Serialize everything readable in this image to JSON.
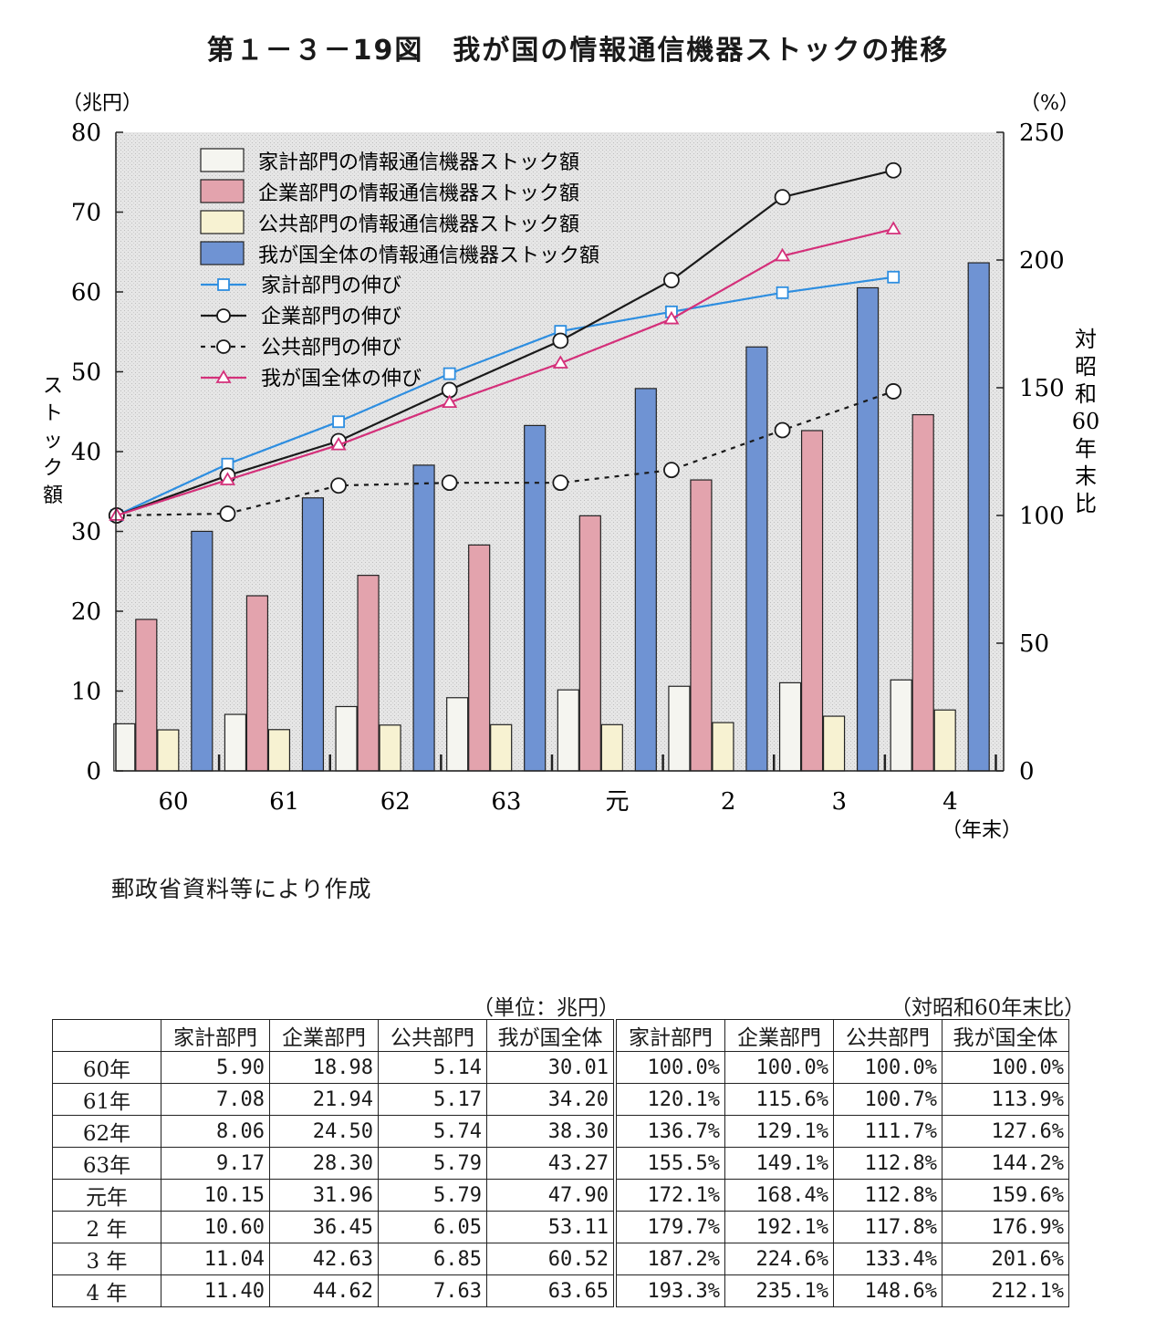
{
  "title": "第１－３－19図　我が国の情報通信機器ストックの推移",
  "source": "郵政省資料等により作成",
  "chart_data": {
    "type": "bar",
    "categories": [
      "60",
      "61",
      "62",
      "63",
      "元",
      "2",
      "3",
      "4"
    ],
    "x_unit": "（年末）",
    "y_left": {
      "unit": "（兆円）",
      "label": "ストック額",
      "min": 0,
      "max": 80,
      "ticks": [
        0,
        10,
        20,
        30,
        40,
        50,
        60,
        70,
        80
      ]
    },
    "y_right": {
      "unit": "（%）",
      "label": "対昭和60年末比",
      "min": 0,
      "max": 250,
      "ticks": [
        0,
        50,
        100,
        150,
        200,
        250
      ]
    },
    "bar_series": [
      {
        "name": "家計部門の情報通信機器ストック額",
        "color": "#f5f5f0",
        "values": [
          5.9,
          7.08,
          8.06,
          9.17,
          10.15,
          10.6,
          11.04,
          11.4
        ]
      },
      {
        "name": "企業部門の情報通信機器ストック額",
        "color": "#e3a3ad",
        "values": [
          18.98,
          21.94,
          24.5,
          28.3,
          31.96,
          36.45,
          42.63,
          44.62
        ]
      },
      {
        "name": "公共部門の情報通信機器ストック額",
        "color": "#f7f2d2",
        "values": [
          5.14,
          5.17,
          5.74,
          5.79,
          5.79,
          6.05,
          6.85,
          7.63
        ]
      },
      {
        "name": "我が国全体の情報通信機器ストック額",
        "color": "#6f93d3",
        "values": [
          30.01,
          34.2,
          38.3,
          43.27,
          47.9,
          53.11,
          60.52,
          63.65
        ]
      }
    ],
    "line_series": [
      {
        "name": "家計部門の伸び",
        "color": "#2e8ee0",
        "marker": "square",
        "dash": false,
        "values": [
          100.0,
          120.1,
          136.7,
          155.5,
          172.1,
          179.7,
          187.2,
          193.3
        ]
      },
      {
        "name": "企業部門の伸び",
        "color": "#1a1a1a",
        "marker": "circle",
        "dash": false,
        "values": [
          100.0,
          115.6,
          129.1,
          149.1,
          168.4,
          192.1,
          224.6,
          235.1
        ]
      },
      {
        "name": "公共部門の伸び",
        "color": "#1a1a1a",
        "marker": "circle",
        "dash": true,
        "values": [
          100.0,
          100.7,
          111.7,
          112.8,
          112.8,
          117.8,
          133.4,
          148.6
        ]
      },
      {
        "name": "我が国全体の伸び",
        "color": "#d4307a",
        "marker": "triangle",
        "dash": false,
        "values": [
          100.0,
          113.9,
          127.6,
          144.2,
          159.6,
          176.9,
          201.6,
          212.1
        ]
      }
    ]
  },
  "table": {
    "unit_left": "（単位：兆円）",
    "unit_right": "（対昭和60年末比）",
    "headers": [
      "家計部門",
      "企業部門",
      "公共部門",
      "我が国全体",
      "家計部門",
      "企業部門",
      "公共部門",
      "我が国全体"
    ],
    "rows": [
      {
        "label": "60年",
        "cells": [
          "5.90",
          "18.98",
          "5.14",
          "30.01",
          "100.0%",
          "100.0%",
          "100.0%",
          "100.0%"
        ]
      },
      {
        "label": "61年",
        "cells": [
          "7.08",
          "21.94",
          "5.17",
          "34.20",
          "120.1%",
          "115.6%",
          "100.7%",
          "113.9%"
        ]
      },
      {
        "label": "62年",
        "cells": [
          "8.06",
          "24.50",
          "5.74",
          "38.30",
          "136.7%",
          "129.1%",
          "111.7%",
          "127.6%"
        ]
      },
      {
        "label": "63年",
        "cells": [
          "9.17",
          "28.30",
          "5.79",
          "43.27",
          "155.5%",
          "149.1%",
          "112.8%",
          "144.2%"
        ]
      },
      {
        "label": "元年",
        "cells": [
          "10.15",
          "31.96",
          "5.79",
          "47.90",
          "172.1%",
          "168.4%",
          "112.8%",
          "159.6%"
        ]
      },
      {
        "label": "2 年",
        "cells": [
          "10.60",
          "36.45",
          "6.05",
          "53.11",
          "179.7%",
          "192.1%",
          "117.8%",
          "176.9%"
        ]
      },
      {
        "label": "3 年",
        "cells": [
          "11.04",
          "42.63",
          "6.85",
          "60.52",
          "187.2%",
          "224.6%",
          "133.4%",
          "201.6%"
        ]
      },
      {
        "label": "4 年",
        "cells": [
          "11.40",
          "44.62",
          "7.63",
          "63.65",
          "193.3%",
          "235.1%",
          "148.6%",
          "212.1%"
        ]
      }
    ]
  }
}
